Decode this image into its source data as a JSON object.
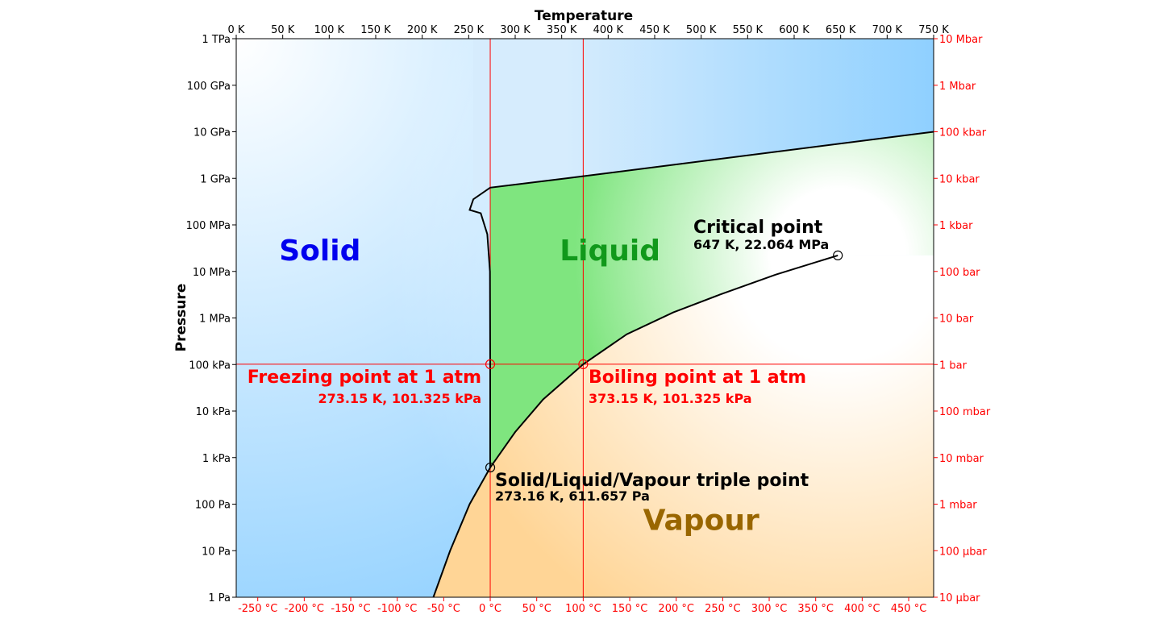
{
  "chart_data": {
    "type": "area",
    "title": "",
    "xlabel": "Temperature",
    "ylabel": "Pressure",
    "xlim": [
      0,
      750
    ],
    "ylim_log10_pa": [
      0,
      12
    ],
    "y_scale": "log",
    "x_ticks_kelvin": [
      {
        "v": 0,
        "label": "0 K"
      },
      {
        "v": 50,
        "label": "50 K"
      },
      {
        "v": 100,
        "label": "100 K"
      },
      {
        "v": 150,
        "label": "150 K"
      },
      {
        "v": 200,
        "label": "200 K"
      },
      {
        "v": 250,
        "label": "250 K"
      },
      {
        "v": 300,
        "label": "300 K"
      },
      {
        "v": 350,
        "label": "350 K"
      },
      {
        "v": 400,
        "label": "400 K"
      },
      {
        "v": 450,
        "label": "450 K"
      },
      {
        "v": 500,
        "label": "500 K"
      },
      {
        "v": 550,
        "label": "550 K"
      },
      {
        "v": 600,
        "label": "600 K"
      },
      {
        "v": 650,
        "label": "650 K"
      },
      {
        "v": 700,
        "label": "700 K"
      },
      {
        "v": 750,
        "label": "750 K"
      }
    ],
    "x_ticks_celsius": [
      {
        "v": -250,
        "label": "-250 °C"
      },
      {
        "v": -200,
        "label": "-200 °C"
      },
      {
        "v": -150,
        "label": "-150 °C"
      },
      {
        "v": -100,
        "label": "-100 °C"
      },
      {
        "v": -50,
        "label": "-50 °C"
      },
      {
        "v": 0,
        "label": "0 °C"
      },
      {
        "v": 50,
        "label": "50 °C"
      },
      {
        "v": 100,
        "label": "100 °C"
      },
      {
        "v": 150,
        "label": "150 °C"
      },
      {
        "v": 200,
        "label": "200 °C"
      },
      {
        "v": 250,
        "label": "250 °C"
      },
      {
        "v": 300,
        "label": "300 °C"
      },
      {
        "v": 350,
        "label": "350 °C"
      },
      {
        "v": 400,
        "label": "400 °C"
      },
      {
        "v": 450,
        "label": "450 °C"
      }
    ],
    "y_ticks_pa": [
      {
        "v": 12,
        "label": "1 TPa"
      },
      {
        "v": 11,
        "label": "100 GPa"
      },
      {
        "v": 10,
        "label": "10 GPa"
      },
      {
        "v": 9,
        "label": "1 GPa"
      },
      {
        "v": 8,
        "label": "100 MPa"
      },
      {
        "v": 7,
        "label": "10 MPa"
      },
      {
        "v": 6,
        "label": "1 MPa"
      },
      {
        "v": 5,
        "label": "100 kPa"
      },
      {
        "v": 4,
        "label": "10 kPa"
      },
      {
        "v": 3,
        "label": "1 kPa"
      },
      {
        "v": 2,
        "label": "100 Pa"
      },
      {
        "v": 1,
        "label": "10 Pa"
      },
      {
        "v": 0,
        "label": "1 Pa"
      }
    ],
    "y_ticks_bar": [
      {
        "v": 12,
        "label": "10 Mbar"
      },
      {
        "v": 11,
        "label": "1 Mbar"
      },
      {
        "v": 10,
        "label": "100 kbar"
      },
      {
        "v": 9,
        "label": "10 kbar"
      },
      {
        "v": 8,
        "label": "1 kbar"
      },
      {
        "v": 7,
        "label": "100 bar"
      },
      {
        "v": 6,
        "label": "10 bar"
      },
      {
        "v": 5,
        "label": "1 bar"
      },
      {
        "v": 4,
        "label": "100 mbar"
      },
      {
        "v": 3,
        "label": "10 mbar"
      },
      {
        "v": 2,
        "label": "1 mbar"
      },
      {
        "v": 1,
        "label": "100 µbar"
      },
      {
        "v": 0,
        "label": "10 µbar"
      }
    ],
    "boundaries": {
      "vapour_curve": [
        [
          212,
          0
        ],
        [
          230,
          1
        ],
        [
          251,
          2
        ],
        [
          273.16,
          2.787
        ],
        [
          300,
          3.55
        ],
        [
          330,
          4.25
        ],
        [
          373.15,
          5.006
        ],
        [
          420,
          5.65
        ],
        [
          470,
          6.12
        ],
        [
          520,
          6.5
        ],
        [
          580,
          6.93
        ],
        [
          647,
          7.344
        ]
      ],
      "fusion_curve": [
        [
          273.16,
          2.787
        ],
        [
          273.16,
          5.006
        ],
        [
          272.9,
          7.0
        ],
        [
          270,
          7.8
        ],
        [
          263,
          8.25
        ],
        [
          251,
          8.32
        ],
        [
          255,
          8.55
        ],
        [
          273.16,
          8.8
        ],
        [
          355,
          9.0
        ],
        [
          750,
          10.0
        ]
      ]
    },
    "regions": [
      {
        "name": "Solid",
        "x": 90,
        "y": 7.45,
        "color": "#0000ee"
      },
      {
        "name": "Liquid",
        "x": 402,
        "y": 7.45,
        "color": "#11991b"
      },
      {
        "name": "Vapour",
        "x": 500,
        "y": 1.65,
        "color": "#996600"
      }
    ],
    "annotations": {
      "critical": {
        "title": "Critical point",
        "sub": "647 K, 22.064 MPa",
        "x": 647,
        "y": 7.344
      },
      "freezing": {
        "title": "Freezing point at 1 atm",
        "sub": "273.15 K, 101.325 kPa",
        "x": 273.15,
        "y": 5.006
      },
      "boiling": {
        "title": "Boiling point at 1 atm",
        "sub": "373.15 K, 101.325 kPa",
        "x": 373.15,
        "y": 5.006
      },
      "triple": {
        "title": "Solid/Liquid/Vapour triple point",
        "sub": "273.16 K, 611.657 Pa",
        "x": 273.16,
        "y": 2.787
      }
    },
    "reference_lines": {
      "vertical_kelvin": [
        273.15,
        373.15
      ],
      "horizontal_log10_pa": [
        5.006
      ]
    },
    "grid": false,
    "colors": {
      "solid": "#8fd0ff",
      "liquid": "#7fe57f",
      "vapour": "#ffd596",
      "reference": "#ff0000",
      "secondary_axis": "#ff0000",
      "boundary": "#000000"
    }
  }
}
